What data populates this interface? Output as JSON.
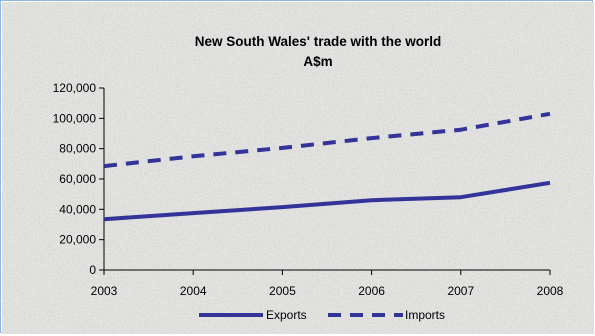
{
  "chart_data": {
    "type": "line",
    "title": "New South Wales' trade with the world",
    "subtitle": "A$m",
    "x": [
      "2003",
      "2004",
      "2005",
      "2006",
      "2007",
      "2008"
    ],
    "ylim": [
      0,
      120000
    ],
    "y_ticks": [
      "0",
      "20,000",
      "40,000",
      "60,000",
      "80,000",
      "100,000",
      "120,000"
    ],
    "grid": false,
    "legend_position": "bottom",
    "series": [
      {
        "name": "Exports",
        "values": [
          33500,
          37500,
          41500,
          46000,
          48000,
          57500
        ],
        "color": "#33339a",
        "style": "solid"
      },
      {
        "name": "Imports",
        "values": [
          68500,
          75000,
          80500,
          87000,
          92500,
          103000
        ],
        "color": "#33339a",
        "style": "dashed"
      }
    ]
  }
}
